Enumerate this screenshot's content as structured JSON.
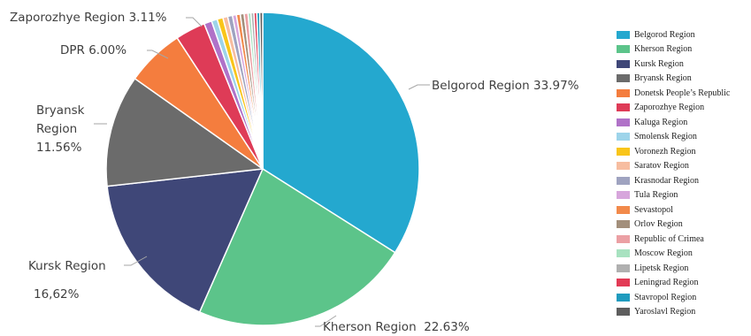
{
  "chart_data": {
    "type": "pie",
    "title": "",
    "slices": [
      {
        "name": "Belgorod Region",
        "value": 33.97,
        "color": "#24A8CF"
      },
      {
        "name": "Kherson Region",
        "value": 22.63,
        "color": "#5CC48A"
      },
      {
        "name": "Kursk Region",
        "value": 16.62,
        "color": "#3F4778"
      },
      {
        "name": "Bryansk Region",
        "value": 11.56,
        "color": "#6B6B6B"
      },
      {
        "name": "Donetsk People's Republic",
        "value": 6.0,
        "color": "#F47D3E"
      },
      {
        "name": "Zaporozhye Region",
        "value": 3.11,
        "color": "#DE3B57"
      },
      {
        "name": "Kaluga Region",
        "value": 0.8,
        "color": "#B072C8"
      },
      {
        "name": "Smolensk Region",
        "value": 0.6,
        "color": "#9DD4EA"
      },
      {
        "name": "Voronezh Region",
        "value": 0.6,
        "color": "#F9C51A"
      },
      {
        "name": "Saratov Region",
        "value": 0.5,
        "color": "#F7BDA0"
      },
      {
        "name": "Krasnodar Region",
        "value": 0.5,
        "color": "#9FA3C0"
      },
      {
        "name": "Tula Region",
        "value": 0.4,
        "color": "#D7A6DC"
      },
      {
        "name": "Sevastopol",
        "value": 0.4,
        "color": "#F28A4B"
      },
      {
        "name": "Orlov Region",
        "value": 0.4,
        "color": "#A38F7B"
      },
      {
        "name": "Republic of Crimea",
        "value": 0.4,
        "color": "#EBA0A4"
      },
      {
        "name": "Moscow Region",
        "value": 0.3,
        "color": "#A8E2C0"
      },
      {
        "name": "Lipetsk Region",
        "value": 0.3,
        "color": "#B0B0B0"
      },
      {
        "name": "Leningrad Region",
        "value": 0.3,
        "color": "#E23A55"
      },
      {
        "name": "Stavropol Region",
        "value": 0.3,
        "color": "#1F9BBE"
      },
      {
        "name": "Yaroslavl Region",
        "value": 0.3,
        "color": "#5E5E5E"
      }
    ],
    "labels": [
      {
        "lines": [
          "Belgorod Region 33.97%"
        ]
      },
      {
        "lines": [
          "Kherson Region  22.63%"
        ]
      },
      {
        "lines": [
          "Kursk Region",
          "16,62%"
        ]
      },
      {
        "lines": [
          "Bryansk",
          "Region",
          "11.56%"
        ]
      },
      {
        "lines": [
          "DPR 6.00%"
        ]
      },
      {
        "lines": [
          "Zaporozhye Region 3.11%"
        ]
      }
    ],
    "legend": {
      "position": "right",
      "items": [
        "Belgorod Region",
        "Kherson Region",
        "Kursk Region",
        "Bryansk Region",
        "Donetsk People’s Republic",
        "Zaporozhye Region",
        "Kaluga Region",
        "Smolensk Region",
        "Voronezh Region",
        "Saratov Region",
        "Krasnodar Region",
        "Tula Region",
        "Sevastopol",
        "Orlov Region",
        "Republic of Crimea",
        "Moscow Region",
        "Lipetsk Region",
        "Leningrad Region",
        "Stavropol Region",
        "Yaroslavl Region"
      ]
    }
  }
}
